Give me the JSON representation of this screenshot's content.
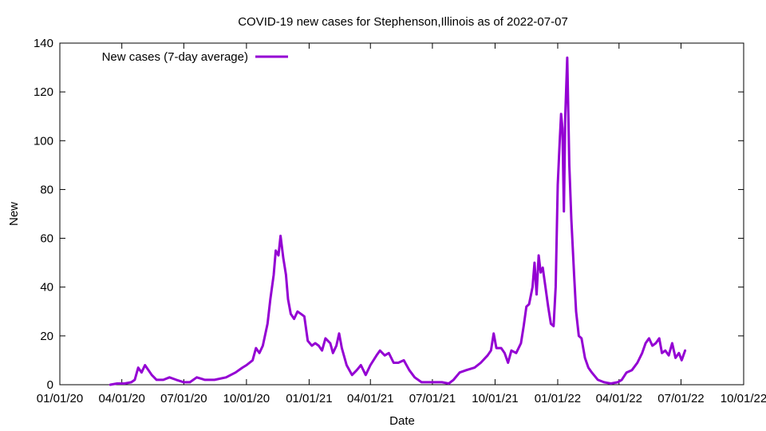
{
  "chart_data": {
    "type": "line",
    "title": "COVID-19 new cases for Stephenson,Illinois as of 2022-07-07",
    "xlabel": "Date",
    "ylabel": "New",
    "xlim": [
      "2020-01-01",
      "2022-10-01"
    ],
    "ylim": [
      0,
      140
    ],
    "x_ticks": [
      "01/01/20",
      "04/01/20",
      "07/01/20",
      "10/01/20",
      "01/01/21",
      "04/01/21",
      "07/01/21",
      "10/01/21",
      "01/01/22",
      "04/01/22",
      "07/01/22",
      "10/01/22"
    ],
    "x_tick_dates": [
      "2020-01-01",
      "2020-04-01",
      "2020-07-01",
      "2020-10-01",
      "2021-01-01",
      "2021-04-01",
      "2021-07-01",
      "2021-10-01",
      "2022-01-01",
      "2022-04-01",
      "2022-07-01",
      "2022-10-01"
    ],
    "y_ticks": [
      0,
      20,
      40,
      60,
      80,
      100,
      120,
      140
    ],
    "legend_position": "top-left",
    "grid": false,
    "series": [
      {
        "name": "New cases (7-day average)",
        "color": "#9400d3",
        "points": [
          [
            "2020-03-15",
            0
          ],
          [
            "2020-03-25",
            0.5
          ],
          [
            "2020-04-05",
            0.5
          ],
          [
            "2020-04-15",
            1
          ],
          [
            "2020-04-20",
            2
          ],
          [
            "2020-04-25",
            7
          ],
          [
            "2020-04-30",
            5
          ],
          [
            "2020-05-05",
            8
          ],
          [
            "2020-05-10",
            6
          ],
          [
            "2020-05-15",
            4
          ],
          [
            "2020-05-22",
            2
          ],
          [
            "2020-06-01",
            2
          ],
          [
            "2020-06-10",
            3
          ],
          [
            "2020-06-20",
            2
          ],
          [
            "2020-07-01",
            1
          ],
          [
            "2020-07-10",
            1
          ],
          [
            "2020-07-20",
            3
          ],
          [
            "2020-08-01",
            2
          ],
          [
            "2020-08-15",
            2
          ],
          [
            "2020-09-01",
            3
          ],
          [
            "2020-09-15",
            5
          ],
          [
            "2020-09-25",
            7
          ],
          [
            "2020-10-01",
            8
          ],
          [
            "2020-10-10",
            10
          ],
          [
            "2020-10-15",
            15
          ],
          [
            "2020-10-20",
            13
          ],
          [
            "2020-10-25",
            16
          ],
          [
            "2020-11-01",
            25
          ],
          [
            "2020-11-05",
            35
          ],
          [
            "2020-11-10",
            45
          ],
          [
            "2020-11-13",
            55
          ],
          [
            "2020-11-17",
            53
          ],
          [
            "2020-11-20",
            61
          ],
          [
            "2020-11-24",
            52
          ],
          [
            "2020-11-28",
            45
          ],
          [
            "2020-12-01",
            35
          ],
          [
            "2020-12-05",
            29
          ],
          [
            "2020-12-10",
            27
          ],
          [
            "2020-12-15",
            30
          ],
          [
            "2020-12-20",
            29
          ],
          [
            "2020-12-25",
            28
          ],
          [
            "2020-12-30",
            18
          ],
          [
            "2021-01-05",
            16
          ],
          [
            "2021-01-10",
            17
          ],
          [
            "2021-01-15",
            16
          ],
          [
            "2021-01-20",
            14
          ],
          [
            "2021-01-25",
            19
          ],
          [
            "2021-02-01",
            17
          ],
          [
            "2021-02-05",
            13
          ],
          [
            "2021-02-10",
            16
          ],
          [
            "2021-02-14",
            21
          ],
          [
            "2021-02-18",
            15
          ],
          [
            "2021-02-25",
            8
          ],
          [
            "2021-03-05",
            4
          ],
          [
            "2021-03-12",
            6
          ],
          [
            "2021-03-18",
            8
          ],
          [
            "2021-03-25",
            4
          ],
          [
            "2021-04-01",
            8
          ],
          [
            "2021-04-10",
            12
          ],
          [
            "2021-04-15",
            14
          ],
          [
            "2021-04-22",
            12
          ],
          [
            "2021-04-28",
            13
          ],
          [
            "2021-05-05",
            9
          ],
          [
            "2021-05-12",
            9
          ],
          [
            "2021-05-20",
            10
          ],
          [
            "2021-05-28",
            6
          ],
          [
            "2021-06-05",
            3
          ],
          [
            "2021-06-15",
            1
          ],
          [
            "2021-06-25",
            1
          ],
          [
            "2021-07-05",
            1
          ],
          [
            "2021-07-15",
            1
          ],
          [
            "2021-07-25",
            0.5
          ],
          [
            "2021-08-01",
            2
          ],
          [
            "2021-08-10",
            5
          ],
          [
            "2021-08-20",
            6
          ],
          [
            "2021-09-01",
            7
          ],
          [
            "2021-09-10",
            9
          ],
          [
            "2021-09-20",
            12
          ],
          [
            "2021-09-25",
            14
          ],
          [
            "2021-09-29",
            21
          ],
          [
            "2021-10-03",
            15
          ],
          [
            "2021-10-10",
            15
          ],
          [
            "2021-10-15",
            13
          ],
          [
            "2021-10-20",
            9
          ],
          [
            "2021-10-25",
            14
          ],
          [
            "2021-11-01",
            13
          ],
          [
            "2021-11-08",
            17
          ],
          [
            "2021-11-12",
            24
          ],
          [
            "2021-11-16",
            32
          ],
          [
            "2021-11-20",
            33
          ],
          [
            "2021-11-25",
            40
          ],
          [
            "2021-11-28",
            50
          ],
          [
            "2021-12-01",
            37
          ],
          [
            "2021-12-04",
            53
          ],
          [
            "2021-12-07",
            46
          ],
          [
            "2021-12-10",
            48
          ],
          [
            "2021-12-14",
            40
          ],
          [
            "2021-12-18",
            32
          ],
          [
            "2021-12-22",
            25
          ],
          [
            "2021-12-26",
            24
          ],
          [
            "2021-12-29",
            40
          ],
          [
            "2022-01-01",
            82
          ],
          [
            "2022-01-04",
            100
          ],
          [
            "2022-01-06",
            111
          ],
          [
            "2022-01-08",
            105
          ],
          [
            "2022-01-10",
            71
          ],
          [
            "2022-01-12",
            110
          ],
          [
            "2022-01-15",
            134
          ],
          [
            "2022-01-18",
            90
          ],
          [
            "2022-01-21",
            68
          ],
          [
            "2022-01-25",
            45
          ],
          [
            "2022-01-28",
            30
          ],
          [
            "2022-02-01",
            20
          ],
          [
            "2022-02-05",
            19
          ],
          [
            "2022-02-10",
            11
          ],
          [
            "2022-02-15",
            7
          ],
          [
            "2022-02-20",
            5
          ],
          [
            "2022-03-01",
            2
          ],
          [
            "2022-03-10",
            1
          ],
          [
            "2022-03-20",
            0.5
          ],
          [
            "2022-03-30",
            1
          ],
          [
            "2022-04-05",
            2
          ],
          [
            "2022-04-12",
            5
          ],
          [
            "2022-04-20",
            6
          ],
          [
            "2022-04-28",
            9
          ],
          [
            "2022-05-05",
            13
          ],
          [
            "2022-05-10",
            17
          ],
          [
            "2022-05-15",
            19
          ],
          [
            "2022-05-20",
            16
          ],
          [
            "2022-05-25",
            17
          ],
          [
            "2022-05-30",
            19
          ],
          [
            "2022-06-03",
            13
          ],
          [
            "2022-06-08",
            14
          ],
          [
            "2022-06-13",
            12
          ],
          [
            "2022-06-18",
            17
          ],
          [
            "2022-06-23",
            11
          ],
          [
            "2022-06-28",
            13
          ],
          [
            "2022-07-02",
            10
          ],
          [
            "2022-07-07",
            14
          ]
        ]
      }
    ]
  }
}
